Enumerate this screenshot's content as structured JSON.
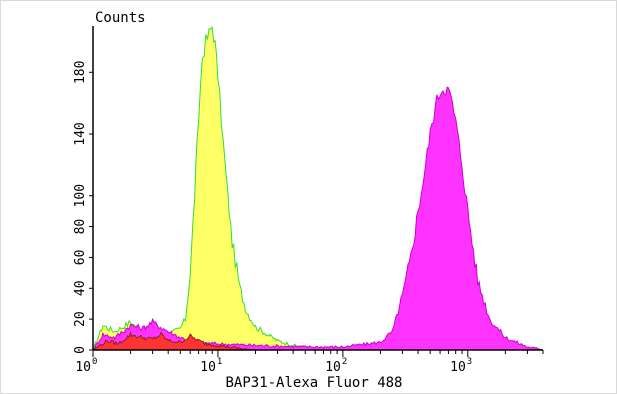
{
  "chart_data": {
    "type": "area",
    "ylabel": "Counts",
    "xlabel": "BAP31-Alexa Fluor 488",
    "xscale": "log",
    "xlim": [
      1,
      4000
    ],
    "ylim": [
      0,
      210
    ],
    "y_ticks": [
      0,
      20,
      40,
      60,
      80,
      100,
      140,
      180
    ],
    "y_tick_labels": [
      "0",
      "20",
      "40",
      "60",
      "80",
      "100",
      "140",
      "180"
    ],
    "x_ticks": [
      1,
      10,
      100,
      1000
    ],
    "x_tick_labels": [
      {
        "base": "10",
        "exp": "0"
      },
      {
        "base": "10",
        "exp": "1"
      },
      {
        "base": "10",
        "exp": "2"
      },
      {
        "base": "10",
        "exp": "3"
      }
    ],
    "grid": false,
    "series": [
      {
        "fill": "#ffff66",
        "stroke": "#33dd33",
        "x": [
          1,
          1.2,
          1.5,
          2,
          2.5,
          3,
          4,
          5,
          5.5,
          6,
          6.5,
          7,
          7.5,
          8,
          8.5,
          9,
          9.5,
          10,
          11,
          12,
          13,
          15,
          17,
          20,
          25,
          30,
          40,
          60,
          100
        ],
        "y": [
          0,
          16,
          12,
          18,
          12,
          15,
          10,
          14,
          20,
          50,
          100,
          150,
          190,
          200,
          205,
          210,
          198,
          178,
          135,
          100,
          70,
          40,
          25,
          15,
          10,
          6,
          3,
          1,
          0
        ]
      },
      {
        "fill": "#ff33ff",
        "stroke": "#cc00cc",
        "x": [
          1,
          1.2,
          1.5,
          2,
          2.5,
          3,
          4,
          5,
          7,
          10,
          20,
          50,
          100,
          200,
          250,
          300,
          350,
          400,
          450,
          500,
          550,
          600,
          650,
          700,
          750,
          800,
          900,
          1000,
          1200,
          1500,
          2000,
          3000,
          4000
        ],
        "y": [
          0,
          10,
          8,
          16,
          14,
          18,
          12,
          8,
          5,
          4,
          3,
          2,
          2,
          5,
          12,
          35,
          60,
          90,
          115,
          140,
          158,
          168,
          170,
          168,
          160,
          148,
          120,
          90,
          45,
          20,
          8,
          2,
          0
        ]
      },
      {
        "fill": "#ff3333",
        "stroke": "#882222",
        "x": [
          1,
          1.3,
          1.6,
          2,
          2.5,
          3,
          3.5,
          4,
          5,
          6,
          7,
          8,
          10,
          12,
          15,
          20
        ],
        "y": [
          0,
          6,
          4,
          10,
          8,
          7,
          10,
          6,
          5,
          9,
          6,
          4,
          3,
          2,
          1,
          0
        ]
      }
    ]
  }
}
